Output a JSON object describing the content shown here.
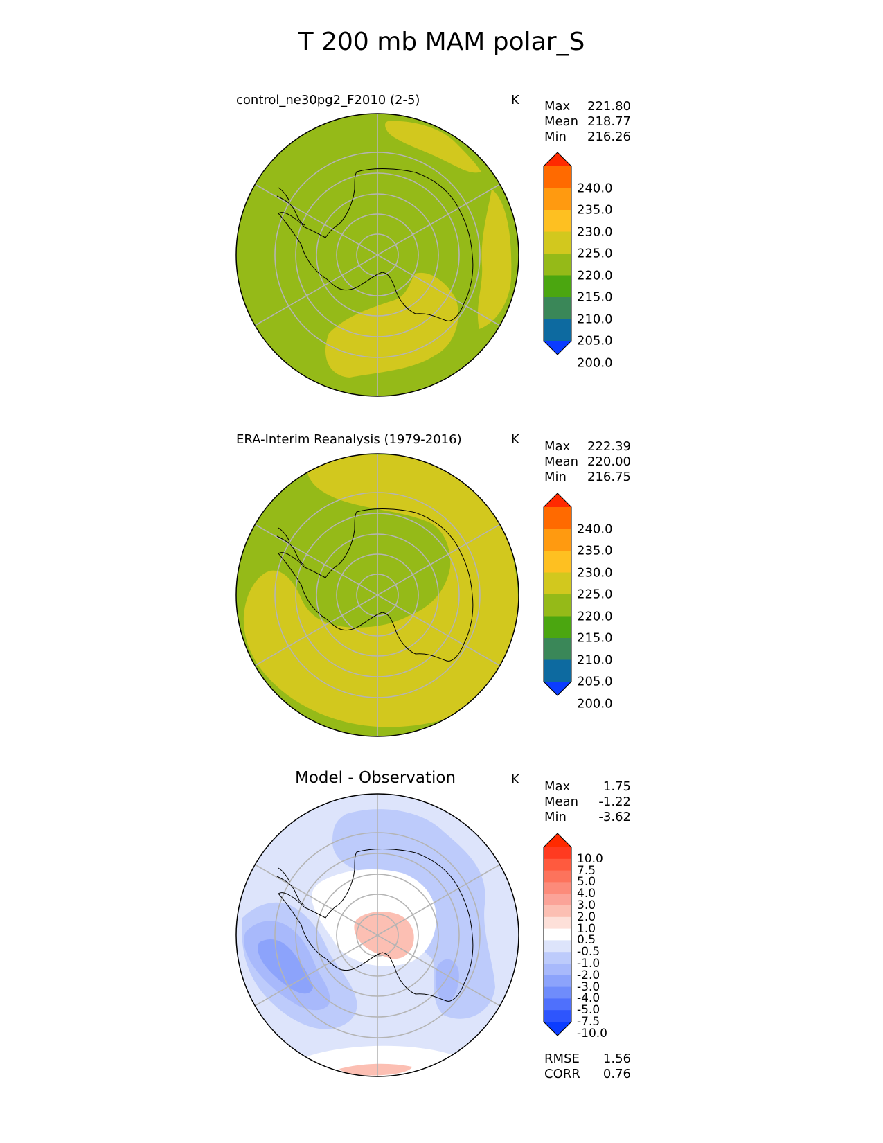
{
  "title": "T 200 mb MAM polar_S",
  "units": "K",
  "chart_data": [
    {
      "type": "heatmap",
      "projection": "south-polar-stereographic",
      "title": "control_ne30pg2_F2010 (2-5)",
      "units": "K",
      "stats": [
        {
          "label": "Max",
          "value": "221.80"
        },
        {
          "label": "Mean",
          "value": "218.77"
        },
        {
          "label": "Min",
          "value": "216.26"
        }
      ],
      "colorbar": {
        "extend": "both",
        "ticks": [
          "240.0",
          "235.0",
          "230.0",
          "225.0",
          "220.0",
          "215.0",
          "210.0",
          "205.0",
          "200.0"
        ],
        "colors_top_to_bottom": [
          "#ff2a00",
          "#ff6a00",
          "#ff9a10",
          "#fec021",
          "#d2c81e",
          "#95ba18",
          "#4ba610",
          "#3a8758",
          "#0d6aa0",
          "#0b3cff"
        ],
        "regions": [
          "#95ba18",
          "#d2c81e"
        ]
      }
    },
    {
      "type": "heatmap",
      "projection": "south-polar-stereographic",
      "title": "ERA-Interim Reanalysis (1979-2016)",
      "units": "K",
      "stats": [
        {
          "label": "Max",
          "value": "222.39"
        },
        {
          "label": "Mean",
          "value": "220.00"
        },
        {
          "label": "Min",
          "value": "216.75"
        }
      ],
      "colorbar": {
        "extend": "both",
        "ticks": [
          "240.0",
          "235.0",
          "230.0",
          "225.0",
          "220.0",
          "215.0",
          "210.0",
          "205.0",
          "200.0"
        ],
        "colors_top_to_bottom": [
          "#ff2a00",
          "#ff6a00",
          "#ff9a10",
          "#fec021",
          "#d2c81e",
          "#95ba18",
          "#4ba610",
          "#3a8758",
          "#0d6aa0",
          "#0b3cff"
        ],
        "regions": [
          "#95ba18",
          "#d2c81e"
        ]
      }
    },
    {
      "type": "heatmap",
      "projection": "south-polar-stereographic",
      "title": "Model - Observation",
      "units": "K",
      "stats": [
        {
          "label": "Max",
          "value": "1.75"
        },
        {
          "label": "Mean",
          "value": "-1.22"
        },
        {
          "label": "Min",
          "value": "-3.62"
        }
      ],
      "colorbar": {
        "extend": "both",
        "ticks": [
          "10.0",
          "7.5",
          "5.0",
          "4.0",
          "3.0",
          "2.0",
          "1.0",
          "0.5",
          "-0.5",
          "-1.0",
          "-2.0",
          "-3.0",
          "-4.0",
          "-5.0",
          "-7.5",
          "-10.0"
        ],
        "colors_top_to_bottom": [
          "#ff2a00",
          "#ff3a20",
          "#ff5a3e",
          "#fd735c",
          "#fc8b7a",
          "#fba398",
          "#fcbfb3",
          "#fde0d9",
          "#ffffff",
          "#dde4fb",
          "#bdcbfb",
          "#a8b9fb",
          "#8ca3fb",
          "#6f8cfb",
          "#4f70fc",
          "#2e55fd",
          "#0b3cff"
        ],
        "regions": [
          "#dde4fb",
          "#bdcbfb",
          "#a8b9fb",
          "#8ca3fb",
          "#ffffff",
          "#fcbfb3"
        ]
      },
      "metrics": [
        {
          "label": "RMSE",
          "value": "1.56"
        },
        {
          "label": "CORR",
          "value": "0.76"
        }
      ]
    }
  ]
}
